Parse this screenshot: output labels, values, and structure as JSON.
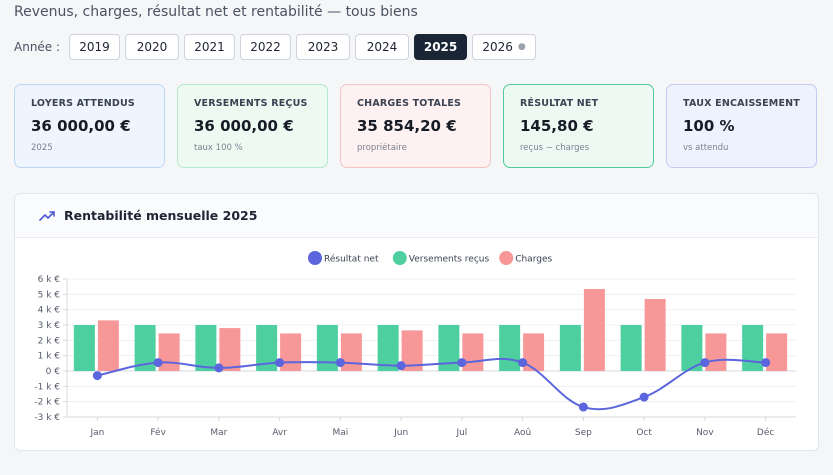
{
  "page_title": "Revenus, charges, résultat net et rentabilité — tous biens",
  "year_filter": {
    "label": "Année :",
    "years": [
      "2019",
      "2020",
      "2021",
      "2022",
      "2023",
      "2024",
      "2025",
      "2026"
    ],
    "selected": "2025",
    "pending_marker": "●"
  },
  "cards": [
    {
      "label": "LOYERS ATTENDUS",
      "value": "36 000,00 €",
      "sub": "2025",
      "bg": "#eef5fe",
      "border": "#bcd6f7"
    },
    {
      "label": "VERSEMENTS REÇUS",
      "value": "36 000,00 €",
      "sub": "taux 100 %",
      "bg": "#edfaf2",
      "border": "#b5e8cb"
    },
    {
      "label": "CHARGES TOTALES",
      "value": "35 854,20 €",
      "sub": "propriétaire",
      "bg": "#fdf1f1",
      "border": "#f3c5c5"
    },
    {
      "label": "RÉSULTAT NET",
      "value": "145,80 €",
      "sub": "reçus − charges",
      "bg": "#edfaf4",
      "border": "#52c99a"
    },
    {
      "label": "TAUX ENCAISSEMENT",
      "value": "100 %",
      "sub": "vs attendu",
      "bg": "#eef1fe",
      "border": "#c3cbf2"
    }
  ],
  "panel": {
    "title": "Rentabilité mensuelle 2025",
    "icon": "trending-up-icon"
  },
  "chart_data": {
    "type": "bar",
    "categories": [
      "Jan",
      "Fév",
      "Mar",
      "Avr",
      "Mai",
      "Jun",
      "Jul",
      "Aoû",
      "Sep",
      "Oct",
      "Nov",
      "Déc"
    ],
    "series": [
      {
        "name": "Résultat net",
        "kind": "line",
        "color": "#5b65dd",
        "values": [
          -300,
          550,
          200,
          550,
          550,
          350,
          550,
          550,
          -2350,
          -1700,
          550,
          550
        ]
      },
      {
        "name": "Versements reçus",
        "kind": "bar",
        "color": "#4dcf9f",
        "values": [
          3000,
          3000,
          3000,
          3000,
          3000,
          3000,
          3000,
          3000,
          3000,
          3000,
          3000,
          3000
        ]
      },
      {
        "name": "Charges",
        "kind": "bar",
        "color": "#f79797",
        "values": [
          3300,
          2450,
          2800,
          2450,
          2450,
          2650,
          2450,
          2450,
          5350,
          4700,
          2450,
          2450
        ]
      }
    ],
    "y_ticks": [
      "6 k €",
      "5 k €",
      "4 k €",
      "3 k €",
      "2 k €",
      "1 k €",
      "0 €",
      "-1 k €",
      "-2 k €",
      "-3 k €"
    ],
    "ylim": [
      -3000,
      6000
    ],
    "legend_position": "top-center",
    "grid": true
  }
}
